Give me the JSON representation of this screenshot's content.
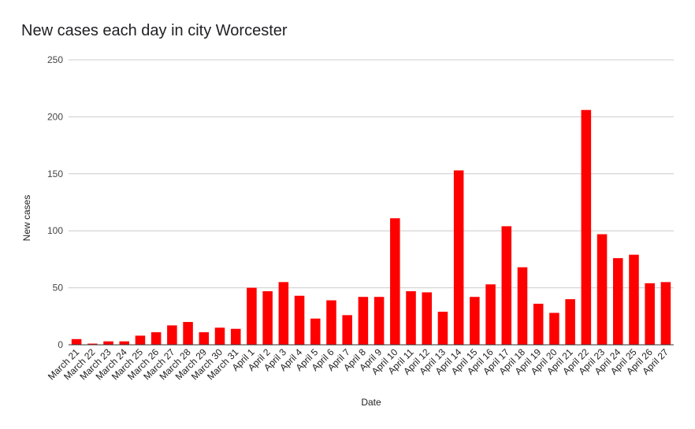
{
  "chart_data": {
    "type": "bar",
    "title": "New cases each day in city Worcester",
    "xlabel": "Date",
    "ylabel": "New cases",
    "ylim": [
      0,
      250
    ],
    "yticks": [
      0,
      50,
      100,
      150,
      200,
      250
    ],
    "grid": true,
    "legend": "none",
    "bar_color": "#ff0000",
    "categories": [
      "March 21",
      "March 22",
      "March 23",
      "March 24",
      "March 25",
      "March 26",
      "March 27",
      "March 28",
      "March 29",
      "March 30",
      "March 31",
      "April 1",
      "April 2",
      "April 3",
      "April 4",
      "April 5",
      "April 6",
      "April 7",
      "April 8",
      "April 9",
      "April 10",
      "April 11",
      "April 12",
      "April 13",
      "April 14",
      "April 15",
      "April 16",
      "April 17",
      "April 18",
      "April 19",
      "April 20",
      "April 21",
      "April 22",
      "April 23",
      "April 24",
      "April 25",
      "April 26",
      "April 27"
    ],
    "values": [
      5,
      1,
      3,
      3,
      8,
      11,
      17,
      20,
      11,
      15,
      14,
      50,
      47,
      55,
      43,
      23,
      39,
      26,
      42,
      42,
      111,
      47,
      46,
      29,
      153,
      42,
      53,
      104,
      68,
      36,
      28,
      40,
      206,
      97,
      76,
      79,
      54,
      55
    ]
  }
}
